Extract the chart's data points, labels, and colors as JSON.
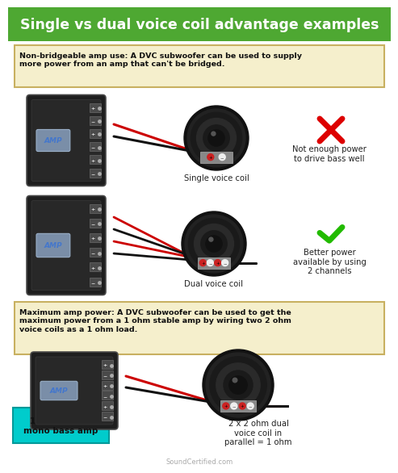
{
  "title": "Single vs dual voice coil advantage examples",
  "title_bg": "#4ea832",
  "title_color": "#ffffff",
  "title_fontsize": 12.5,
  "bg_color": "#ffffff",
  "box1_text": "Non-bridgeable amp use: A DVC subwoofer can be used to supply\nmore power from an amp that can't be bridged.",
  "box2_text": "Maximum amp power: A DVC subwoofer can be used to get the\nmaximum power from a 1 ohm stable amp by wiring two 2 ohm\nvoice coils as a 1 ohm load.",
  "box_bg": "#f5efcc",
  "box_border": "#c8b060",
  "label_single": "Single voice coil",
  "label_dual": "Dual voice coil",
  "label_not_enough": "Not enough power\nto drive bass well",
  "label_better": "Better power\navailable by using\n2 channels",
  "label_1ohm": "1 ohm stable\nmono bass amp",
  "label_2x2ohm": "2 x 2 ohm dual\nvoice coil in\nparallel = 1 ohm",
  "watermark": "SoundCertified.com",
  "amp_dark": "#1c1c1c",
  "wire_red": "#cc0000",
  "wire_black": "#111111",
  "cross_color": "#dd0000",
  "check_color": "#22bb00",
  "cyan_bg": "#00cccc"
}
